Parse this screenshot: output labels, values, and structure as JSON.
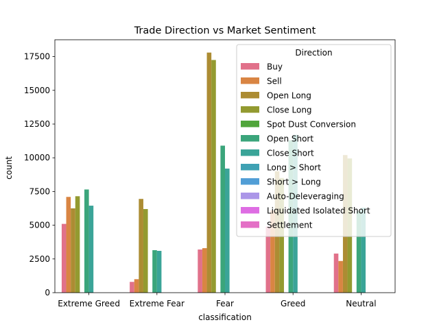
{
  "chart_data": {
    "type": "bar",
    "title": "Trade Direction vs Market Sentiment",
    "xlabel": "classification",
    "ylabel": "count",
    "ylim": [
      0,
      18750
    ],
    "yticks": [
      0,
      2500,
      5000,
      7500,
      10000,
      12500,
      15000,
      17500
    ],
    "ytick_labels": [
      "0",
      "2500",
      "5000",
      "7500",
      "10000",
      "12500",
      "15000",
      "17500"
    ],
    "grid": false,
    "legend": {
      "title": "Direction",
      "placement": "top-right"
    },
    "categories": [
      "Extreme Greed",
      "Extreme Fear",
      "Fear",
      "Greed",
      "Neutral"
    ],
    "series": [
      {
        "name": "Buy",
        "color": "#e1718a",
        "values": [
          5100,
          800,
          3200,
          4900,
          2900
        ]
      },
      {
        "name": "Sell",
        "color": "#d98543",
        "values": [
          7100,
          1000,
          3300,
          6100,
          2350
        ]
      },
      {
        "name": "Open Long",
        "color": "#ac8c33",
        "values": [
          6250,
          6950,
          17800,
          9000,
          10200
        ]
      },
      {
        "name": "Close Long",
        "color": "#939a30",
        "values": [
          7150,
          6200,
          17250,
          8500,
          9950
        ]
      },
      {
        "name": "Spot Dust Conversion",
        "color": "#50a53b",
        "values": [
          0,
          0,
          0,
          0,
          0
        ]
      },
      {
        "name": "Open Short",
        "color": "#3ba57b",
        "values": [
          7650,
          3150,
          10900,
          11300,
          6050
        ]
      },
      {
        "name": "Close Short",
        "color": "#3aa498",
        "values": [
          6450,
          3100,
          9200,
          11700,
          6300
        ]
      },
      {
        "name": "Long > Short",
        "color": "#3fa1b3",
        "values": [
          0,
          0,
          0,
          0,
          0
        ]
      },
      {
        "name": "Short > Long",
        "color": "#519ed6",
        "values": [
          0,
          0,
          0,
          0,
          0
        ]
      },
      {
        "name": "Auto-Deleveraging",
        "color": "#ab96e8",
        "values": [
          0,
          0,
          0,
          0,
          0
        ]
      },
      {
        "name": "Liquidated Isolated Short",
        "color": "#de6de3",
        "values": [
          0,
          0,
          0,
          0,
          0
        ]
      },
      {
        "name": "Settlement",
        "color": "#e470c6",
        "values": [
          0,
          0,
          0,
          0,
          0
        ]
      }
    ]
  }
}
